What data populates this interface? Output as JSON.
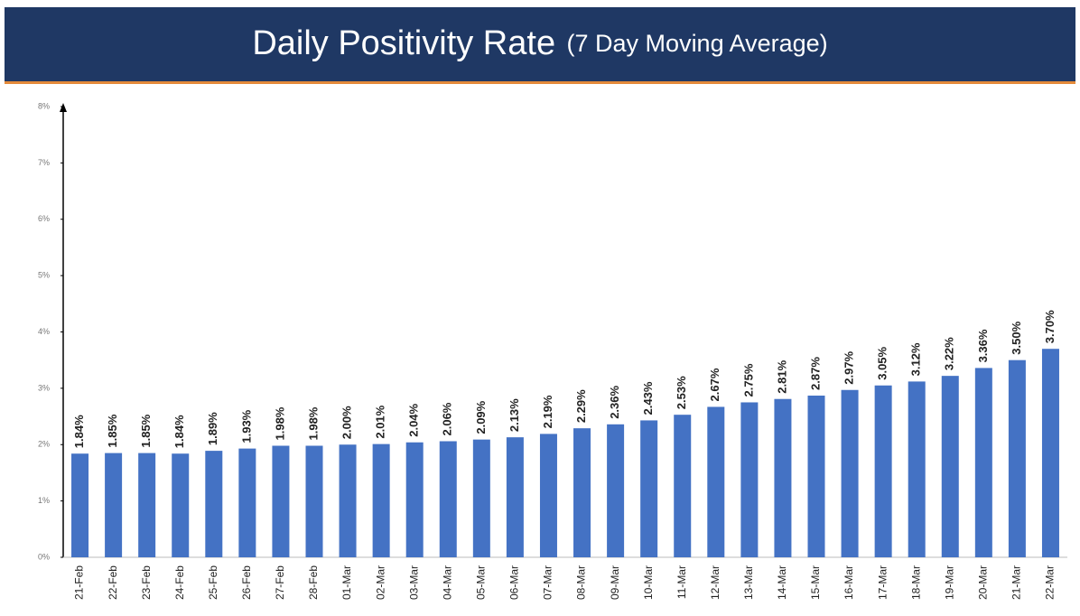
{
  "chart_data": {
    "type": "bar",
    "title": "Daily Positivity Rate",
    "subtitle": "(7 Day Moving Average)",
    "categories": [
      "21-Feb",
      "22-Feb",
      "23-Feb",
      "24-Feb",
      "25-Feb",
      "26-Feb",
      "27-Feb",
      "28-Feb",
      "01-Mar",
      "02-Mar",
      "03-Mar",
      "04-Mar",
      "05-Mar",
      "06-Mar",
      "07-Mar",
      "08-Mar",
      "09-Mar",
      "10-Mar",
      "11-Mar",
      "12-Mar",
      "13-Mar",
      "14-Mar",
      "15-Mar",
      "16-Mar",
      "17-Mar",
      "18-Mar",
      "19-Mar",
      "20-Mar",
      "21-Mar",
      "22-Mar"
    ],
    "values": [
      1.84,
      1.85,
      1.85,
      1.84,
      1.89,
      1.93,
      1.98,
      1.98,
      2.0,
      2.01,
      2.04,
      2.06,
      2.09,
      2.13,
      2.19,
      2.29,
      2.36,
      2.43,
      2.53,
      2.67,
      2.75,
      2.81,
      2.87,
      2.97,
      3.05,
      3.12,
      3.22,
      3.36,
      3.5,
      3.7
    ],
    "value_labels": [
      "1.84%",
      "1.85%",
      "1.85%",
      "1.84%",
      "1.89%",
      "1.93%",
      "1.98%",
      "1.98%",
      "2.00%",
      "2.01%",
      "2.04%",
      "2.06%",
      "2.09%",
      "2.13%",
      "2.19%",
      "2.29%",
      "2.36%",
      "2.43%",
      "2.53%",
      "2.67%",
      "2.75%",
      "2.81%",
      "2.87%",
      "2.97%",
      "3.05%",
      "3.12%",
      "3.22%",
      "3.36%",
      "3.50%",
      "3.70%"
    ],
    "color": "#4472c4",
    "ylim": [
      0,
      8
    ],
    "yticks": [
      {
        "value": 0,
        "label": "0%"
      },
      {
        "value": 1,
        "label": "1%"
      },
      {
        "value": 2,
        "label": "2%"
      },
      {
        "value": 3,
        "label": "3%"
      },
      {
        "value": 4,
        "label": "4%"
      },
      {
        "value": 5,
        "label": "5%"
      },
      {
        "value": 6,
        "label": "6%"
      },
      {
        "value": 7,
        "label": "7%"
      },
      {
        "value": 8,
        "label": "8%"
      }
    ],
    "grid": false
  }
}
